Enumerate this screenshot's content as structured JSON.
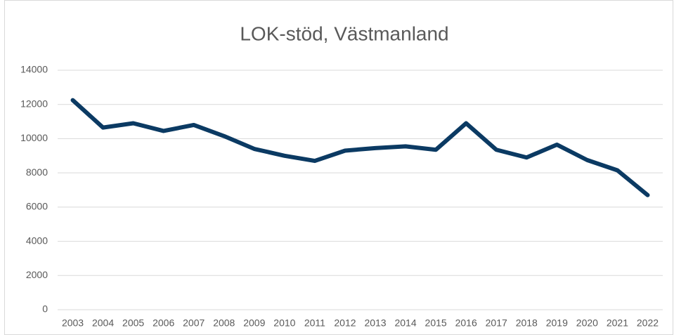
{
  "chart_data": {
    "type": "line",
    "title": "LOK-stöd, Västmanland",
    "categories": [
      "2003",
      "2004",
      "2005",
      "2006",
      "2007",
      "2008",
      "2009",
      "2010",
      "2011",
      "2012",
      "2013",
      "2014",
      "2015",
      "2016",
      "2017",
      "2018",
      "2019",
      "2020",
      "2021",
      "2022"
    ],
    "series": [
      {
        "name": "LOK-stöd",
        "color": "#0b3a63",
        "values": [
          12250,
          10650,
          10900,
          10450,
          10800,
          10150,
          9400,
          9000,
          8700,
          9300,
          9450,
          9550,
          9350,
          10900,
          9350,
          8900,
          9650,
          8750,
          8150,
          6700
        ]
      }
    ],
    "ylim": [
      0,
      14000
    ],
    "yticks": [
      0,
      2000,
      4000,
      6000,
      8000,
      10000,
      12000,
      14000
    ],
    "grid": true
  }
}
